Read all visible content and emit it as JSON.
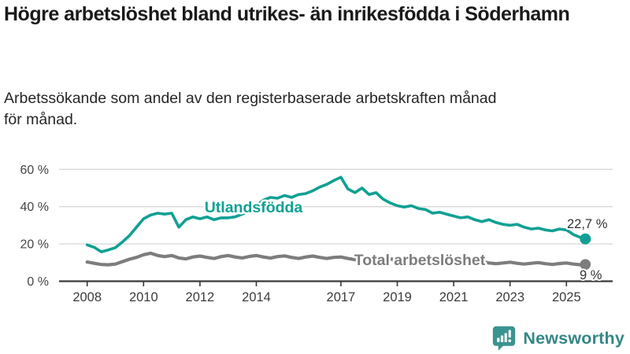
{
  "header": {
    "title": "Högre arbetslöshet bland utrikes- än inrikesfödda i Söderhamn",
    "subtitle": "Arbetssökande som andel av den registerbaserade arbetskraften månad för månad."
  },
  "colors": {
    "accent_teal": "#10a093",
    "line_gray": "#7d7d7d",
    "grid": "#d9d9d9",
    "axis": "#3a3a3a",
    "tick_text": "#454545",
    "end_label_text": "#333333",
    "logo_icon_teal": "#3b9390",
    "logo_text_teal": "#358787",
    "background": "#ffffff"
  },
  "chart_data": {
    "type": "line",
    "title": "Högre arbetslöshet bland utrikes- än inrikesfödda i Söderhamn",
    "subtitle": "Arbetssökande som andel av den registerbaserade arbetskraften månad för månad.",
    "xlabel": "",
    "ylabel": "",
    "unit": "%",
    "grid": "horizontal",
    "legend": "inline-labels",
    "xlim": [
      2007.0,
      2026.6
    ],
    "ylim": [
      0,
      60
    ],
    "x_ticks": [
      2008,
      2010,
      2012,
      2014,
      2017,
      2019,
      2021,
      2023,
      2025
    ],
    "y_ticks": [
      {
        "value": 0,
        "label": "0 %"
      },
      {
        "value": 20,
        "label": "20 %"
      },
      {
        "value": 40,
        "label": "40 %"
      },
      {
        "value": 60,
        "label": "60 %"
      }
    ],
    "x": [
      2008,
      2008.25,
      2008.5,
      2008.75,
      2009,
      2009.25,
      2009.5,
      2009.75,
      2010,
      2010.25,
      2010.5,
      2010.75,
      2011,
      2011.25,
      2011.5,
      2011.75,
      2012,
      2012.25,
      2012.5,
      2012.75,
      2013,
      2013.25,
      2013.5,
      2013.75,
      2014,
      2014.25,
      2014.5,
      2014.75,
      2015,
      2015.25,
      2015.5,
      2015.75,
      2016,
      2016.25,
      2016.5,
      2016.75,
      2017,
      2017.25,
      2017.5,
      2017.75,
      2018,
      2018.25,
      2018.5,
      2018.75,
      2019,
      2019.25,
      2019.5,
      2019.75,
      2020,
      2020.25,
      2020.5,
      2020.75,
      2021,
      2021.25,
      2021.5,
      2021.75,
      2022,
      2022.25,
      2022.5,
      2022.75,
      2023,
      2023.25,
      2023.5,
      2023.75,
      2024,
      2024.25,
      2024.5,
      2024.75,
      2025,
      2025.25,
      2025.5,
      2025.67
    ],
    "series": [
      {
        "name": "Utlandsfödda",
        "color_key": "accent_teal",
        "end_label": "22,7 %",
        "end_value": 22.7,
        "values": [
          19.5,
          18.2,
          15.8,
          16.8,
          18.0,
          21.0,
          24.5,
          29.0,
          33.5,
          35.5,
          36.5,
          36.0,
          36.5,
          29.0,
          33.0,
          34.5,
          33.5,
          34.5,
          33.0,
          34.0,
          34.0,
          34.5,
          36.0,
          37.5,
          40.5,
          43.5,
          45.0,
          44.5,
          46.0,
          45.0,
          46.5,
          47.0,
          48.5,
          50.5,
          52.0,
          54.0,
          55.8,
          49.5,
          47.5,
          50.0,
          46.5,
          47.5,
          44.0,
          42.0,
          40.5,
          39.8,
          40.5,
          39.0,
          38.5,
          36.5,
          37.0,
          36.0,
          35.0,
          34.0,
          34.5,
          33.0,
          32.0,
          33.0,
          31.5,
          30.5,
          30.0,
          30.5,
          29.0,
          28.0,
          28.5,
          27.5,
          27.0,
          28.0,
          27.5,
          25.0,
          23.5,
          22.7
        ]
      },
      {
        "name": "Total arbetslöshet",
        "color_key": "line_gray",
        "end_label": "9 %",
        "end_value": 9.0,
        "values": [
          10.3,
          9.6,
          9.0,
          8.8,
          9.2,
          10.5,
          11.8,
          12.8,
          14.2,
          15.0,
          13.8,
          13.2,
          13.8,
          12.5,
          12.0,
          13.0,
          13.5,
          12.8,
          12.2,
          13.2,
          13.8,
          13.0,
          12.5,
          13.3,
          13.8,
          13.0,
          12.4,
          13.2,
          13.6,
          12.8,
          12.2,
          13.0,
          13.5,
          12.8,
          12.2,
          12.8,
          13.0,
          12.2,
          11.6,
          12.2,
          12.5,
          11.8,
          11.2,
          11.8,
          12.0,
          11.2,
          10.6,
          11.0,
          11.4,
          12.0,
          11.5,
          11.0,
          11.2,
          10.5,
          10.0,
          10.3,
          10.5,
          9.8,
          9.4,
          9.8,
          10.2,
          9.6,
          9.2,
          9.6,
          10.0,
          9.4,
          9.0,
          9.5,
          9.8,
          9.2,
          8.8,
          9.0
        ]
      }
    ]
  },
  "footer": {
    "brand": "Newsworthy",
    "logo_icon": "newsworthy-speech-bubble-bar-chart-icon"
  }
}
